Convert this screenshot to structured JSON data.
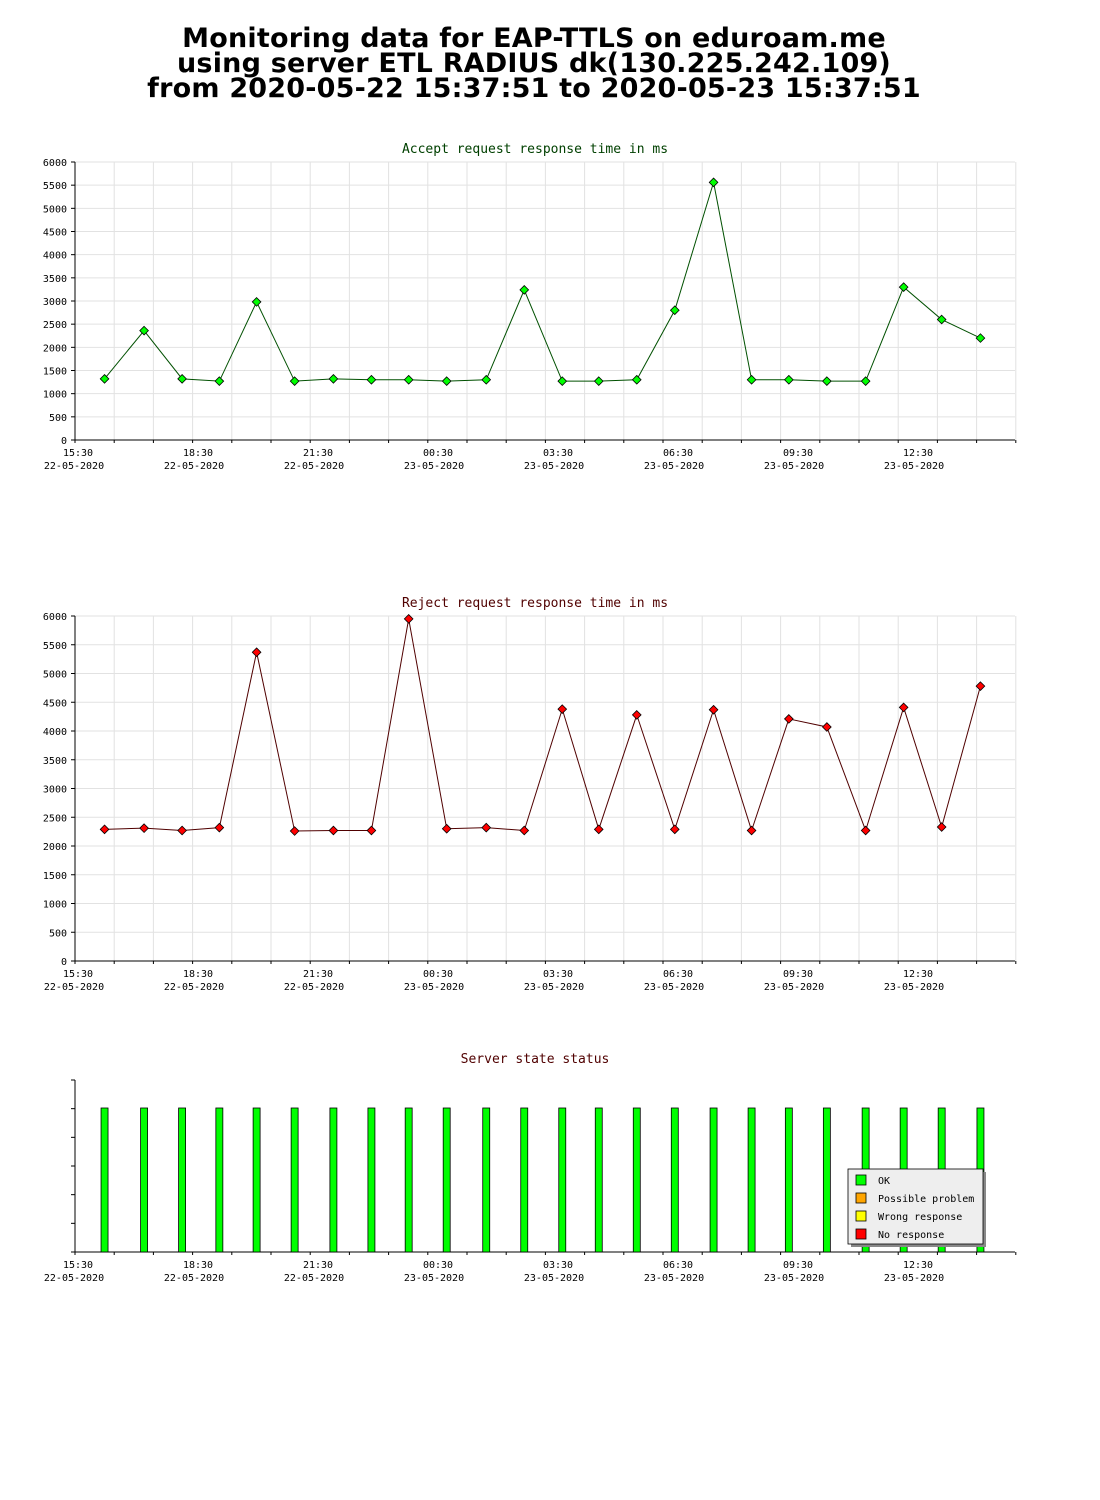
{
  "header": {
    "line1": "Monitoring data for EAP-TTLS on eduroam.me",
    "line2": "using server ETL RADIUS dk(130.225.242.109)",
    "line3": "from 2020-05-22 15:37:51 to 2020-05-23 15:37:51"
  },
  "x_axis": {
    "times": [
      "15:30",
      "18:30",
      "21:30",
      "00:30",
      "03:30",
      "06:30",
      "09:30",
      "12:30"
    ],
    "dates": [
      "22-05-2020",
      "22-05-2020",
      "22-05-2020",
      "23-05-2020",
      "23-05-2020",
      "23-05-2020",
      "23-05-2020",
      "23-05-2020"
    ]
  },
  "chart_data": [
    {
      "type": "line",
      "title": "Accept request response time in ms",
      "color": "#00ff00",
      "line_color": "#005000",
      "title_color": "#004000",
      "ylim": [
        0,
        6000
      ],
      "y_ticks": [
        0,
        500,
        1000,
        1500,
        2000,
        2500,
        3000,
        3500,
        4000,
        4500,
        5000,
        5500,
        6000
      ],
      "x": [
        "2020-05-22 15:50",
        "2020-05-22 16:50",
        "2020-05-22 17:50",
        "2020-05-22 18:50",
        "2020-05-22 19:50",
        "2020-05-22 20:50",
        "2020-05-22 21:50",
        "2020-05-22 22:50",
        "2020-05-22 23:50",
        "2020-05-23 00:50",
        "2020-05-23 01:50",
        "2020-05-23 02:50",
        "2020-05-23 03:50",
        "2020-05-23 04:50",
        "2020-05-23 05:50",
        "2020-05-23 06:50",
        "2020-05-23 07:50",
        "2020-05-23 08:50",
        "2020-05-23 09:50",
        "2020-05-23 10:50",
        "2020-05-23 11:50",
        "2020-05-23 12:50",
        "2020-05-23 13:50",
        "2020-05-23 14:50"
      ],
      "x_hours": [
        0.33,
        1.37,
        2.37,
        3.35,
        4.33,
        5.33,
        6.35,
        7.35,
        8.33,
        9.33,
        10.37,
        11.37,
        12.37,
        13.33,
        14.33,
        15.33,
        16.35,
        17.35,
        18.33,
        19.33,
        20.35,
        21.35,
        22.35,
        23.37
      ],
      "values": [
        1320,
        2360,
        1320,
        1270,
        2980,
        1270,
        1320,
        1300,
        1300,
        1270,
        1300,
        3240,
        1270,
        1270,
        1300,
        2800,
        5560,
        1300,
        1300,
        1270,
        1270,
        3300,
        2600,
        2200
      ]
    },
    {
      "type": "line",
      "title": "Reject request response time in ms",
      "color": "#ff0000",
      "line_color": "#500000",
      "title_color": "#500000",
      "ylim": [
        0,
        6000
      ],
      "y_ticks": [
        0,
        500,
        1000,
        1500,
        2000,
        2500,
        3000,
        3500,
        4000,
        4500,
        5000,
        5500,
        6000
      ],
      "x_hours": [
        0.33,
        1.37,
        2.37,
        3.35,
        4.33,
        5.33,
        6.35,
        7.35,
        8.33,
        9.33,
        10.37,
        11.37,
        12.37,
        13.33,
        14.33,
        15.33,
        16.35,
        17.35,
        18.33,
        19.33,
        20.35,
        21.35,
        22.35,
        23.37
      ],
      "values": [
        2290,
        2310,
        2270,
        2320,
        5370,
        2260,
        2270,
        2270,
        5950,
        2300,
        2320,
        2270,
        4380,
        2290,
        4280,
        2290,
        4370,
        2270,
        4210,
        4070,
        2270,
        4410,
        2330,
        4780
      ]
    },
    {
      "type": "bar",
      "title": "Server state status",
      "title_color": "#500000",
      "x_hours": [
        0.33,
        1.37,
        2.37,
        3.35,
        4.33,
        5.33,
        6.35,
        7.35,
        8.33,
        9.33,
        10.37,
        11.37,
        12.37,
        13.33,
        14.33,
        15.33,
        16.35,
        17.35,
        18.33,
        19.33,
        20.35,
        21.35,
        22.35,
        23.37
      ],
      "states": [
        "OK",
        "OK",
        "OK",
        "OK",
        "OK",
        "OK",
        "OK",
        "OK",
        "OK",
        "OK",
        "OK",
        "OK",
        "OK",
        "OK",
        "OK",
        "OK",
        "OK",
        "OK",
        "OK",
        "OK",
        "OK",
        "OK",
        "OK",
        "OK"
      ],
      "legend": [
        {
          "label": "OK",
          "color": "#00ff00"
        },
        {
          "label": "Possible problem",
          "color": "#ffa500"
        },
        {
          "label": "Wrong response",
          "color": "#ffff00"
        },
        {
          "label": "No response",
          "color": "#ff0000"
        }
      ]
    }
  ]
}
